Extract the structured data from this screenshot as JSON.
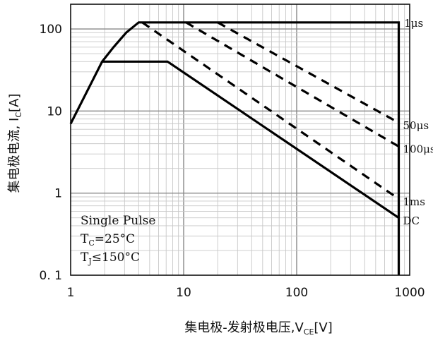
{
  "chart_data": {
    "type": "line",
    "x_scale": "log",
    "y_scale": "log",
    "xlim": [
      1,
      1000
    ],
    "ylim": [
      0.1,
      200
    ],
    "xlabel": "集电极-发射极电压,V",
    "xlabel_sub": "CE",
    "xlabel_unit": "[V]",
    "ylabel": "集电极电流, I",
    "ylabel_sub": "C",
    "ylabel_unit": "[A]",
    "x_ticks": [
      {
        "value": 1,
        "label": "1"
      },
      {
        "value": 10,
        "label": "10"
      },
      {
        "value": 100,
        "label": "100"
      },
      {
        "value": 1000,
        "label": "1000"
      }
    ],
    "y_ticks": [
      {
        "value": 0.1,
        "label": "0. 1"
      },
      {
        "value": 1,
        "label": "1"
      },
      {
        "value": 10,
        "label": "10"
      },
      {
        "value": 100,
        "label": "100"
      }
    ],
    "grid": true,
    "series": [
      {
        "name": "1μs",
        "style": "solid",
        "points": [
          [
            1,
            7
          ],
          [
            1.9,
            40
          ],
          [
            2.4,
            60
          ],
          [
            3.1,
            90
          ],
          [
            4.0,
            120
          ],
          [
            800,
            120
          ],
          [
            800,
            0.1
          ]
        ]
      },
      {
        "name": "50μs",
        "style": "dashed",
        "points": [
          [
            20,
            120
          ],
          [
            800,
            7.2
          ]
        ]
      },
      {
        "name": "100μs",
        "style": "dashed",
        "points": [
          [
            10.5,
            120
          ],
          [
            800,
            3.7
          ]
        ]
      },
      {
        "name": "1ms",
        "style": "dashed",
        "points": [
          [
            4.3,
            120
          ],
          [
            800,
            0.85
          ]
        ]
      },
      {
        "name": "DC",
        "style": "solid",
        "points": [
          [
            1.9,
            40
          ],
          [
            7.2,
            40
          ],
          [
            800,
            0.5
          ]
        ]
      }
    ],
    "annotations": [
      {
        "label": "1μs",
        "at": [
          820,
          120
        ]
      },
      {
        "label": "50μs",
        "at": [
          800,
          6.8
        ]
      },
      {
        "label": "100μs",
        "at": [
          800,
          3.5
        ]
      },
      {
        "label": "1ms",
        "at": [
          800,
          0.8
        ]
      },
      {
        "label": "DC",
        "at": [
          800,
          0.47
        ]
      }
    ],
    "conditions": [
      {
        "text": "Single Pulse"
      },
      {
        "text": "T",
        "sub": "C",
        "rest": "=25°C"
      },
      {
        "text": "T",
        "sub": "J",
        "rest": "≤150°C"
      }
    ]
  }
}
